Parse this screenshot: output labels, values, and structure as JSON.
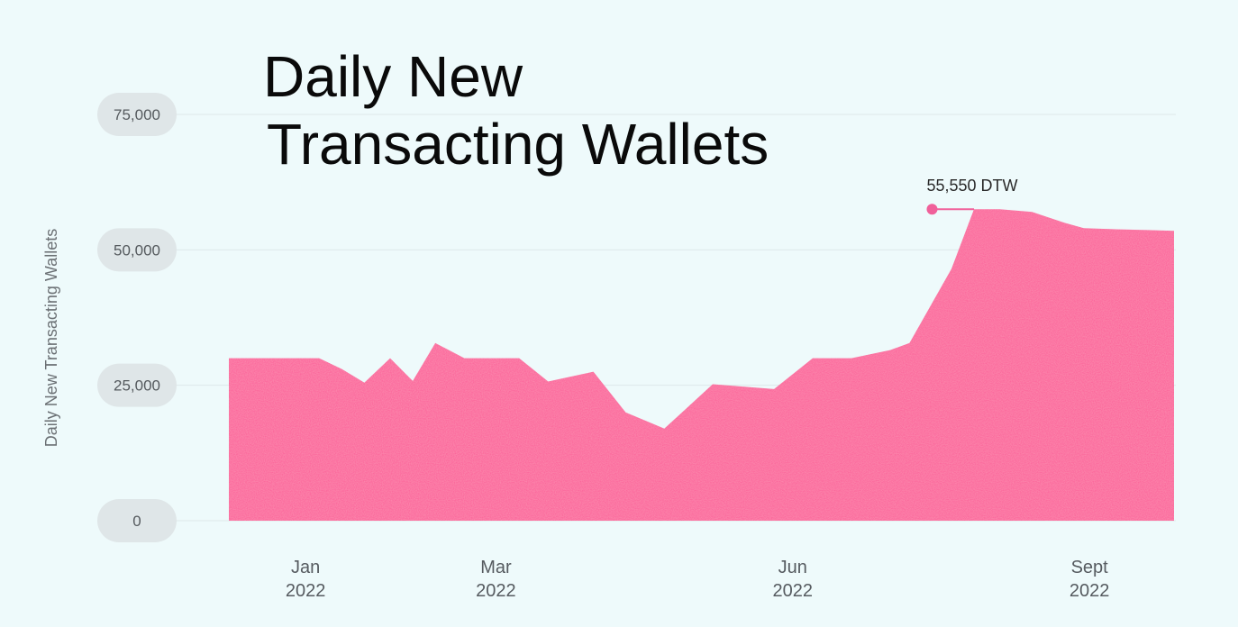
{
  "chart_data": {
    "type": "area",
    "title_lines": [
      "Daily New",
      "Transacting Wallets"
    ],
    "xlabel": "",
    "ylabel": "Daily New Transacting Wallets",
    "ylim": [
      0,
      75000
    ],
    "y_ticks": [
      0,
      25000,
      50000,
      75000
    ],
    "y_tick_labels": [
      "0",
      "25,000",
      "50,000",
      "75,000"
    ],
    "x_ticks": [
      {
        "label_line1": "Jan",
        "label_line2": "2022",
        "x": "2022-01-01"
      },
      {
        "label_line1": "Mar",
        "label_line2": "2022",
        "x": "2022-03-01"
      },
      {
        "label_line1": "Jun",
        "label_line2": "2022",
        "x": "2022-06-01"
      },
      {
        "label_line1": "Sept",
        "label_line2": "2022",
        "x": "2022-09-01"
      }
    ],
    "xlim": [
      "2021-12-11",
      "2022-09-30"
    ],
    "grid": true,
    "color": "#fb5c97",
    "series": [
      {
        "x": [
          "2021-12-11",
          "2021-12-30",
          "2022-01-08",
          "2022-01-15",
          "2022-01-22",
          "2022-01-30",
          "2022-02-06",
          "2022-02-13",
          "2022-02-22",
          "2022-03-03",
          "2022-03-11",
          "2022-03-20",
          "2022-04-03",
          "2022-04-13",
          "2022-04-25",
          "2022-05-10",
          "2022-05-29",
          "2022-06-10",
          "2022-06-22",
          "2022-07-04",
          "2022-07-10",
          "2022-07-23",
          "2022-07-30",
          "2022-08-07",
          "2022-08-17",
          "2022-08-27",
          "2022-09-02",
          "2022-09-12",
          "2022-09-19",
          "2022-09-30"
        ],
        "y": [
          30000,
          30000,
          30000,
          28000,
          25500,
          30000,
          25800,
          32800,
          30000,
          30000,
          30000,
          25700,
          27500,
          20000,
          17000,
          25200,
          24300,
          30000,
          30000,
          31500,
          32800,
          46500,
          57500,
          57500,
          57000,
          55000,
          54000,
          53800,
          53700,
          53500
        ]
      }
    ],
    "annotation": {
      "text": "55,550 DTW",
      "x_start": "2022-07-17",
      "y": 57500
    }
  }
}
